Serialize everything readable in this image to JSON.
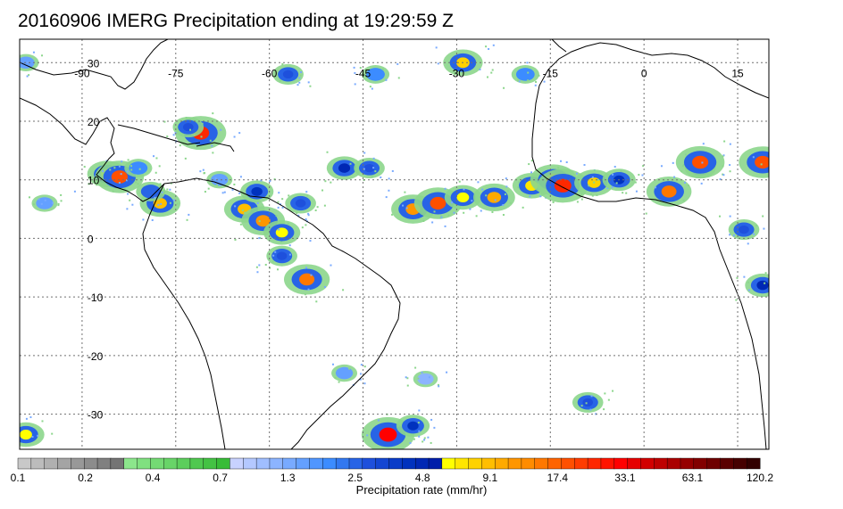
{
  "title": "20160906 IMERG Precipitation ending at 19:29:59 Z",
  "map": {
    "lon_range": [
      -100,
      20
    ],
    "lat_range": [
      -36,
      34
    ],
    "lon_ticks": [
      {
        "value": -90,
        "label": "-90"
      },
      {
        "value": -75,
        "label": "-75"
      },
      {
        "value": -60,
        "label": "-60"
      },
      {
        "value": -45,
        "label": "-45"
      },
      {
        "value": -30,
        "label": "-30"
      },
      {
        "value": -15,
        "label": "-15"
      },
      {
        "value": 0,
        "label": "0"
      },
      {
        "value": 15,
        "label": "15"
      }
    ],
    "lat_ticks": [
      {
        "value": 30,
        "label": "30"
      },
      {
        "value": 20,
        "label": "20"
      },
      {
        "value": 10,
        "label": "10"
      },
      {
        "value": 0,
        "label": "0"
      },
      {
        "value": -10,
        "label": "-10"
      },
      {
        "value": -20,
        "label": "-20"
      },
      {
        "value": -30,
        "label": "-30"
      }
    ],
    "gridlines": true,
    "precip_cells": [
      {
        "lon": -86,
        "lat": 11,
        "mm": 8
      },
      {
        "lon": -84,
        "lat": 10.5,
        "mm": 20
      },
      {
        "lon": -81,
        "lat": 12,
        "mm": 2
      },
      {
        "lon": -77.5,
        "lat": 6,
        "mm": 9
      },
      {
        "lon": -79,
        "lat": 8,
        "mm": 2.5
      },
      {
        "lon": -71,
        "lat": 18,
        "mm": 25
      },
      {
        "lon": -73,
        "lat": 19,
        "mm": 3
      },
      {
        "lon": -68,
        "lat": 10,
        "mm": 1.5
      },
      {
        "lon": -64,
        "lat": 5,
        "mm": 9
      },
      {
        "lon": -61,
        "lat": 3,
        "mm": 12
      },
      {
        "lon": -58,
        "lat": 1,
        "mm": 6
      },
      {
        "lon": -55,
        "lat": 6,
        "mm": 3
      },
      {
        "lon": -62,
        "lat": 8,
        "mm": 4
      },
      {
        "lon": -54,
        "lat": -7,
        "mm": 15
      },
      {
        "lon": -58,
        "lat": -3,
        "mm": 3
      },
      {
        "lon": -48,
        "lat": 12,
        "mm": 5
      },
      {
        "lon": -44,
        "lat": 12,
        "mm": 3
      },
      {
        "lon": -37,
        "lat": 5,
        "mm": 12
      },
      {
        "lon": -33,
        "lat": 6,
        "mm": 18
      },
      {
        "lon": -29,
        "lat": 7,
        "mm": 6
      },
      {
        "lon": -24,
        "lat": 7,
        "mm": 10
      },
      {
        "lon": -18,
        "lat": 9,
        "mm": 7
      },
      {
        "lon": -14.5,
        "lat": 10,
        "mm": 16
      },
      {
        "lon": -13,
        "lat": 9,
        "mm": 25
      },
      {
        "lon": -8,
        "lat": 9.5,
        "mm": 8
      },
      {
        "lon": -4,
        "lat": 10,
        "mm": 4
      },
      {
        "lon": 4,
        "lat": 8,
        "mm": 14
      },
      {
        "lon": 9,
        "lat": 12,
        "mm": 3
      },
      {
        "lon": 9,
        "lat": 13,
        "mm": 20
      },
      {
        "lon": 19,
        "lat": 13,
        "mm": 18
      },
      {
        "lon": 16,
        "lat": 1.5,
        "mm": 3
      },
      {
        "lon": 19,
        "lat": -8,
        "mm": 5
      },
      {
        "lon": -29,
        "lat": 30,
        "mm": 8
      },
      {
        "lon": -57,
        "lat": 28,
        "mm": 3
      },
      {
        "lon": -43,
        "lat": 28,
        "mm": 2
      },
      {
        "lon": -19,
        "lat": 28,
        "mm": 2
      },
      {
        "lon": -99,
        "lat": 30,
        "mm": 1.5
      },
      {
        "lon": -96,
        "lat": 6,
        "mm": 1.5
      },
      {
        "lon": -99,
        "lat": -33.5,
        "mm": 6
      },
      {
        "lon": -41,
        "lat": -33.5,
        "mm": 30
      },
      {
        "lon": -37,
        "lat": -32,
        "mm": 4
      },
      {
        "lon": -9,
        "lat": -28,
        "mm": 3
      },
      {
        "lon": -48,
        "lat": -23,
        "mm": 1.5
      },
      {
        "lon": -35,
        "lat": -24,
        "mm": 1.2
      }
    ]
  },
  "colorbar": {
    "caption": "Precipitation rate (mm/hr)",
    "colors": [
      "#c8c8c8",
      "#bcbcbc",
      "#b0b0b0",
      "#a4a4a4",
      "#989898",
      "#8c8c8c",
      "#808080",
      "#747474",
      "#8ce68c",
      "#80e080",
      "#74da74",
      "#68d468",
      "#5cce5c",
      "#50c850",
      "#44c244",
      "#38bc38",
      "#c8d2ff",
      "#b4c8ff",
      "#a0beff",
      "#8cb4ff",
      "#78aaff",
      "#64a0ff",
      "#5096ff",
      "#3c8cff",
      "#3278f0",
      "#2864e6",
      "#1e50dc",
      "#1446d2",
      "#0a3cc8",
      "#0032be",
      "#0028b4",
      "#001eaa",
      "#ffff00",
      "#ffe600",
      "#ffd200",
      "#ffbe00",
      "#ffaa00",
      "#ff9600",
      "#ff8c00",
      "#ff7800",
      "#ff6400",
      "#ff5000",
      "#ff3c00",
      "#ff2800",
      "#ff1400",
      "#ff0000",
      "#e60000",
      "#d20000",
      "#be0000",
      "#aa0000",
      "#960000",
      "#820000",
      "#6e0000",
      "#5a0000",
      "#460000",
      "#320000"
    ],
    "tick_labels": [
      {
        "label": "0.1",
        "index": 0
      },
      {
        "label": "0.2",
        "index": 8
      },
      {
        "label": "0.4",
        "index": 16
      },
      {
        "label": "0.7",
        "index": 24
      },
      {
        "label": "1.3",
        "index": 32
      },
      {
        "label": "2.5",
        "index": 40
      },
      {
        "label": "4.8",
        "index": 48
      },
      {
        "label": "9.1",
        "index": 56
      },
      {
        "label": "17.4",
        "index": 64
      },
      {
        "label": "33.1",
        "index": 72
      },
      {
        "label": "63.1",
        "index": 80
      },
      {
        "label": "120.2",
        "index": 88
      }
    ]
  },
  "chart_data": {
    "type": "heatmap",
    "title": "20160906 IMERG Precipitation ending at 19:29:59 Z",
    "xlabel": "",
    "ylabel": "",
    "colorbar_label": "Precipitation rate (mm/hr)",
    "colorbar_ticks": [
      0.1,
      0.2,
      0.4,
      0.7,
      1.3,
      2.5,
      4.8,
      9.1,
      17.4,
      33.1,
      63.1,
      120.2
    ],
    "x_ticks": [
      -90,
      -75,
      -60,
      -45,
      -30,
      -15,
      0,
      15
    ],
    "y_ticks": [
      30,
      20,
      10,
      0,
      -10,
      -20,
      -30
    ],
    "grid": true
  }
}
